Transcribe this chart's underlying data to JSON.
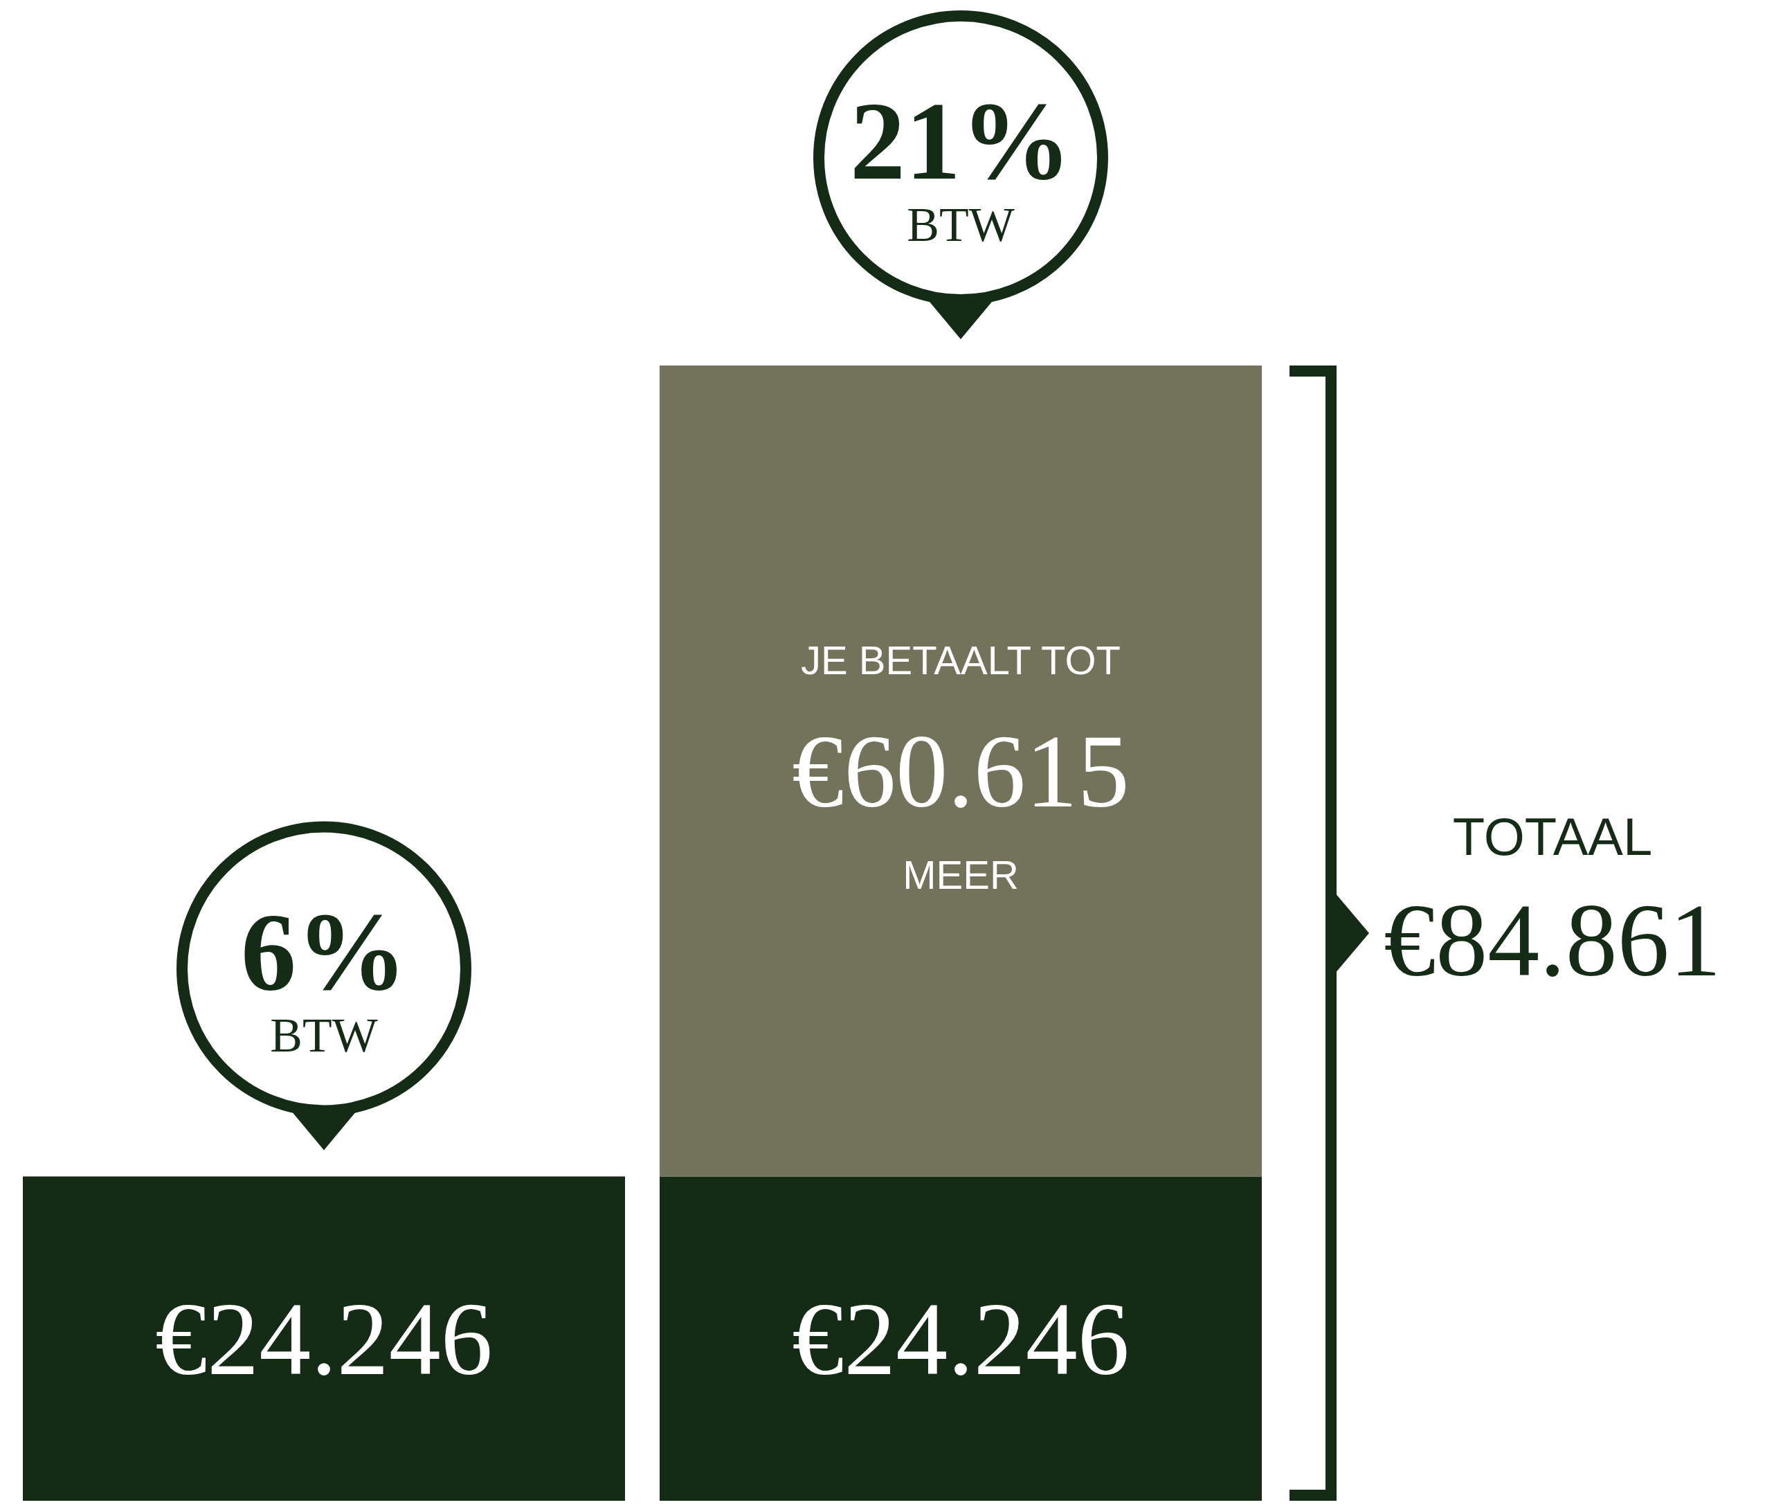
{
  "chart_data": {
    "type": "bar",
    "stacked": true,
    "categories": [
      "6% BTW",
      "21% BTW"
    ],
    "series": [
      {
        "color": "#142c16",
        "values": [
          24246,
          24246
        ],
        "value_labels": [
          "€24.246",
          "€24.246"
        ]
      },
      {
        "color": "#73735c",
        "values": [
          null,
          60615
        ],
        "value_labels": [
          null,
          "€60.615"
        ]
      }
    ],
    "totals": [
      null,
      "€84.861"
    ],
    "annotations": [
      "JE BETAALT TOT",
      "MEER",
      "TOTAAL"
    ]
  }
}
